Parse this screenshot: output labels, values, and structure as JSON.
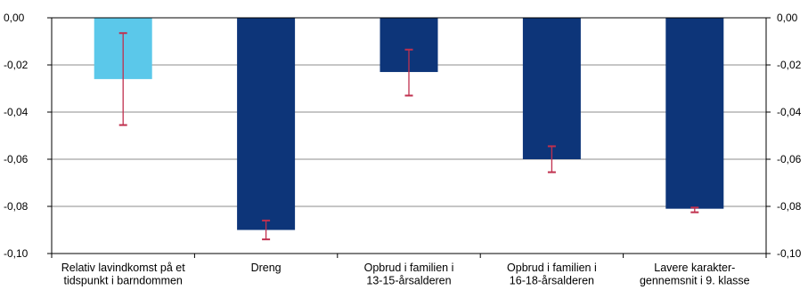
{
  "chart_data": {
    "type": "bar",
    "categories": [
      [
        "Relativ lavindkomst på et",
        "tidspunkt i barndommen"
      ],
      [
        "Dreng"
      ],
      [
        "Opbrud i familien i",
        "13-15-årsalderen"
      ],
      [
        "Opbrud i familien i",
        "16-18-årsalderen"
      ],
      [
        "Lavere karakter-",
        "gennemsnit i 9. klasse"
      ]
    ],
    "values": [
      -0.026,
      -0.09,
      -0.023,
      -0.06,
      -0.081
    ],
    "error_low": [
      -0.0455,
      -0.094,
      -0.033,
      -0.0655,
      -0.0825
    ],
    "error_high": [
      -0.0065,
      -0.086,
      -0.0135,
      -0.0545,
      -0.0805
    ],
    "bar_colors": [
      "#5bc8ea",
      "#0d3579",
      "#0d3579",
      "#0d3579",
      "#0d3579"
    ],
    "error_color": "#c0304e",
    "ylim": [
      -0.1,
      0.0
    ],
    "yticks": [
      0.0,
      -0.02,
      -0.04,
      -0.06,
      -0.08,
      -0.1
    ],
    "ytick_labels": [
      "0,00",
      "-0,02",
      "-0,04",
      "-0,06",
      "-0,08",
      "-0,10"
    ],
    "grid": true,
    "secondary_y_axis": true
  }
}
